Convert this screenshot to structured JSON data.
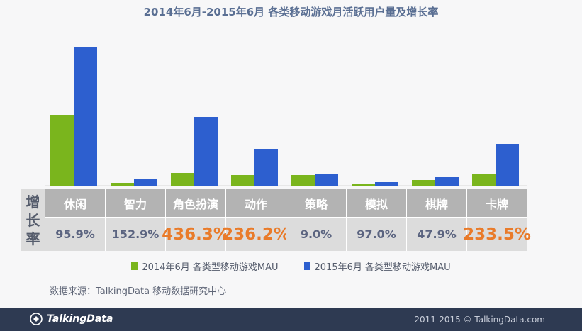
{
  "title": "2014年6月-2015年6月 各类移动游戏月活跃用户量及增长率",
  "chart_data": {
    "type": "bar",
    "categories": [
      "休闲",
      "智力",
      "角色扮演",
      "动作",
      "策略",
      "模拟",
      "棋牌",
      "卡牌"
    ],
    "series": [
      {
        "name": "2014年6月 各类型移动游戏MAU",
        "color": "#7ab51d",
        "values": [
          100,
          4,
          18,
          15,
          15,
          3,
          8,
          17
        ]
      },
      {
        "name": "2015年6月 各类型移动游戏MAU",
        "color": "#2d5fcf",
        "values": [
          196,
          10,
          97,
          52,
          16,
          5,
          12,
          59
        ]
      }
    ],
    "growth_rates": [
      "95.9%",
      "152.9%",
      "436.3%",
      "236.2%",
      "9.0%",
      "97.0%",
      "47.9%",
      "233.5%"
    ],
    "highlight": [
      false,
      false,
      true,
      true,
      false,
      false,
      false,
      true
    ],
    "ylim": [
      0,
      200
    ],
    "grid": false,
    "legend_position": "bottom"
  },
  "table": {
    "row_header": [
      "增",
      "长",
      "率"
    ]
  },
  "source": "数据来源：TalkingData 移动数据研究中心",
  "footer": {
    "brand": "TalkingData",
    "copyright": "2011-2015 © TalkingData.com"
  },
  "colors": {
    "highlight_rate": "#e97b2a",
    "normal_rate": "#5b6480"
  }
}
